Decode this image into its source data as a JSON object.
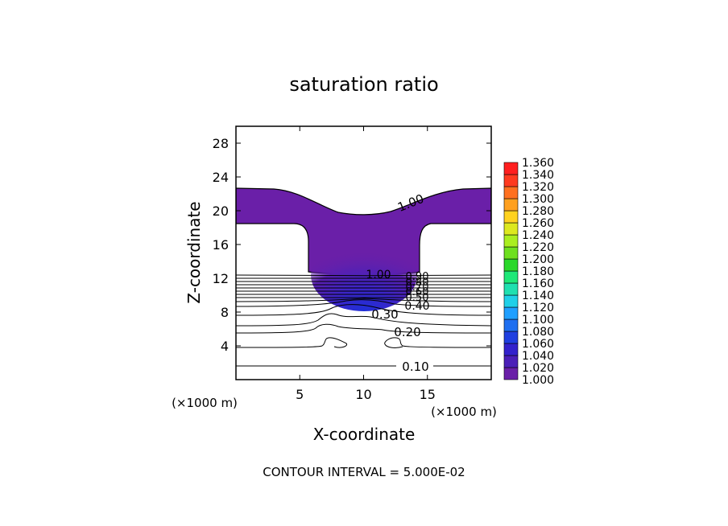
{
  "chart_data": {
    "type": "contour",
    "title": "saturation ratio",
    "xlabel": "X-coordinate",
    "ylabel": "Z-coordinate",
    "x_unit_label": "(×1000 m)",
    "y_unit_label": "(×1000 m)",
    "xlim": [
      0,
      20
    ],
    "ylim": [
      0,
      30
    ],
    "x_ticks": [
      5,
      10,
      15
    ],
    "y_ticks": [
      4,
      8,
      12,
      16,
      20,
      24,
      28
    ],
    "footer": "CONTOUR INTERVAL = 5.000E-02",
    "colorbar": {
      "levels": [
        "1.000",
        "1.020",
        "1.040",
        "1.060",
        "1.080",
        "1.100",
        "1.120",
        "1.140",
        "1.160",
        "1.180",
        "1.200",
        "1.220",
        "1.240",
        "1.260",
        "1.280",
        "1.300",
        "1.320",
        "1.340",
        "1.360"
      ],
      "colors": [
        "#6a1fa8",
        "#4b1fb8",
        "#3322cc",
        "#1f3fe0",
        "#1f6ff0",
        "#1f9fff",
        "#1fd0e8",
        "#1fe0b0",
        "#1ee878",
        "#2ad82a",
        "#6ee01f",
        "#aaee1f",
        "#dde81f",
        "#ffd21f",
        "#ffa01f",
        "#ff701f",
        "#ff3a1f",
        "#ff1f1f",
        "#ff8080"
      ]
    },
    "contour_labels": [
      {
        "text": "1.00",
        "x": 11.5,
        "z": 20.3
      },
      {
        "text": "1.00",
        "x": 11.0,
        "z": 12.4
      },
      {
        "text": "0.90",
        "x": 13.8,
        "z": 12.3
      },
      {
        "text": "0.80",
        "x": 13.8,
        "z": 11.6
      },
      {
        "text": "0.70",
        "x": 13.8,
        "z": 11.0
      },
      {
        "text": "0.60",
        "x": 13.8,
        "z": 10.5
      },
      {
        "text": "0.50",
        "x": 13.8,
        "z": 9.8
      },
      {
        "text": "0.40",
        "x": 13.8,
        "z": 8.8
      },
      {
        "text": "0.30",
        "x": 11.8,
        "z": 7.6
      },
      {
        "text": "0.20",
        "x": 13.5,
        "z": 5.7
      },
      {
        "text": "0.10",
        "x": 14.3,
        "z": 1.7
      }
    ]
  }
}
